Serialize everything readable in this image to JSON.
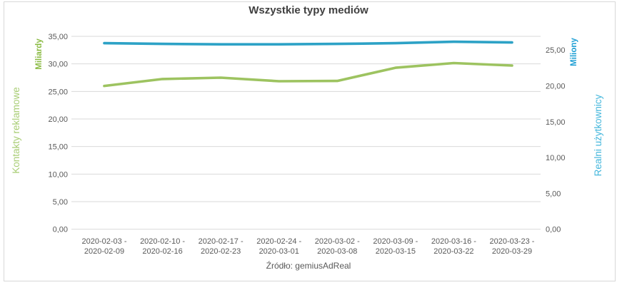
{
  "chart": {
    "title": "Wszystkie typy mediów"
  },
  "footer": {
    "source": "Źródło: gemiusAdReal"
  },
  "chart_data": {
    "type": "line",
    "categories": [
      "2020-02-03 - 2020-02-09",
      "2020-02-10 - 2020-02-16",
      "2020-02-17 - 2020-02-23",
      "2020-02-24 - 2020-03-01",
      "2020-03-02 - 2020-03-08",
      "2020-03-09 - 2020-03-15",
      "2020-03-16 - 2020-03-22",
      "2020-03-23 - 2020-03-29"
    ],
    "series": [
      {
        "name": "Kontakty reklamowe",
        "unit": "Miliardy",
        "axis": "left",
        "color": "#9dc360",
        "values": [
          26.0,
          27.25,
          27.5,
          26.85,
          26.9,
          29.3,
          30.15,
          29.7
        ]
      },
      {
        "name": "Realni użytkownicy",
        "unit": "Miliony",
        "axis": "right",
        "color": "#2da2c6",
        "values": [
          25.95,
          25.85,
          25.8,
          25.8,
          25.85,
          25.95,
          26.15,
          26.05
        ]
      }
    ],
    "left_axis": {
      "name": "Kontakty reklamowe",
      "unit_label": "Miliardy",
      "min": 0,
      "max": 35,
      "step": 5,
      "tick_values": [
        0,
        5,
        10,
        15,
        20,
        25,
        30,
        35
      ],
      "tick_labels": [
        "0,00",
        "5,00",
        "10,00",
        "15,00",
        "20,00",
        "25,00",
        "30,00",
        "35,00"
      ],
      "name_color": "#a8cd74",
      "unit_color": "#8bbb44"
    },
    "right_axis": {
      "name": "Realni użytkownicy",
      "unit_label": "Miliony",
      "min": 0,
      "max": 25,
      "step": 5,
      "tick_values": [
        0,
        5,
        10,
        15,
        20,
        25
      ],
      "tick_labels": [
        "0,00",
        "5,00",
        "10,00",
        "15,00",
        "20,00",
        "25,00"
      ],
      "name_color": "#45b7dc",
      "unit_color": "#1f9fd4"
    },
    "grid": true,
    "gridline_color": "#d9d9d9",
    "tick_text_color": "#595959",
    "legend_position": "none"
  }
}
